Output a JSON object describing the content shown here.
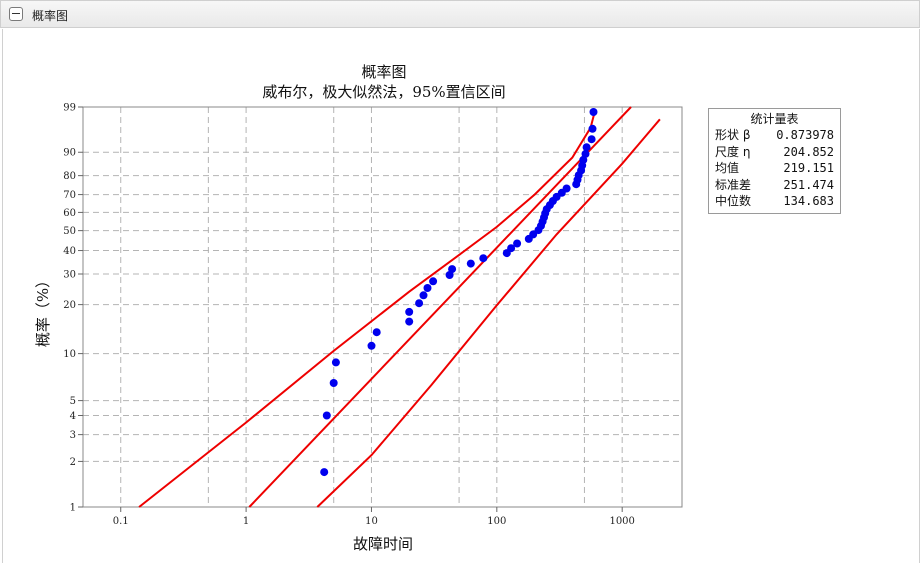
{
  "panel": {
    "title": "概率图"
  },
  "chart_data": {
    "type": "scatter",
    "title": "概率图",
    "subtitle": "威布尔，极大似然法，95%置信区间",
    "xlabel": "故障时间",
    "ylabel": "概率（%）",
    "x_scale": "log",
    "y_scale": "weibull",
    "xlim": [
      0.05,
      3000
    ],
    "ylim": [
      1,
      99
    ],
    "x_ticks": [
      0.1,
      1,
      10,
      100,
      1000
    ],
    "x_tick_labels": [
      "0.1",
      "1",
      "10",
      "100",
      "1000"
    ],
    "y_ticks": [
      1,
      2,
      3,
      4,
      5,
      10,
      20,
      30,
      40,
      50,
      60,
      70,
      80,
      90,
      99
    ],
    "grid": true,
    "colors": {
      "points": "#0000ee",
      "lines": "#ee0000"
    },
    "points": {
      "x": [
        4.2,
        4.4,
        5.0,
        5.2,
        10,
        11,
        20,
        20,
        24,
        26,
        28,
        31,
        42,
        44,
        62,
        78,
        120,
        130,
        145,
        180,
        195,
        215,
        225,
        232,
        238,
        243,
        250,
        265,
        280,
        300,
        330,
        360,
        430,
        440,
        450,
        470,
        480,
        490,
        510,
        520,
        570,
        580,
        590
      ],
      "y": [
        1.7,
        4.0,
        6.5,
        8.8,
        11.2,
        13.6,
        15.8,
        18.1,
        20.4,
        22.7,
        25.0,
        27.3,
        29.6,
        31.9,
        34.2,
        36.5,
        38.8,
        41.1,
        43.4,
        45.7,
        48.0,
        50.3,
        52.6,
        54.9,
        57.2,
        59.5,
        61.8,
        64.1,
        66.4,
        68.7,
        71.0,
        73.3,
        75.6,
        77.9,
        80.2,
        82.5,
        84.8,
        87.1,
        89.4,
        91.7,
        94.0,
        96.3,
        98.6
      ]
    },
    "fit": {
      "shape": 0.873978,
      "scale": 204.852
    },
    "lower_band": {
      "x": [
        3.7,
        10,
        30,
        100,
        300,
        1000,
        2000
      ],
      "y": [
        1,
        2.2,
        6.3,
        19.8,
        48,
        85.5,
        97.8
      ]
    },
    "upper_band": {
      "x": [
        0.14,
        1,
        5,
        20,
        50,
        100,
        200,
        400,
        560,
        600
      ],
      "y": [
        1,
        3.6,
        10.4,
        23.8,
        38,
        52,
        70,
        88,
        96.5,
        98.5
      ]
    },
    "legend": "none"
  },
  "stats": {
    "title": "统计量表",
    "rows": [
      {
        "label": "形状 β",
        "value": "0.873978"
      },
      {
        "label": "尺度 η",
        "value": "204.852"
      },
      {
        "label": "均值",
        "value": "219.151"
      },
      {
        "label": "标准差",
        "value": "251.474"
      },
      {
        "label": "中位数",
        "value": "134.683"
      }
    ]
  }
}
